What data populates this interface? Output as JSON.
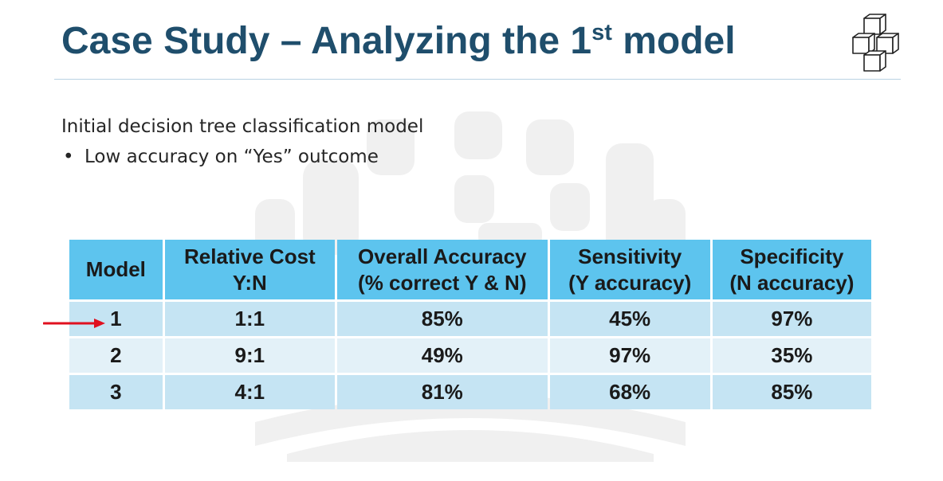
{
  "slide": {
    "title_main": "Case Study – Analyzing the 1",
    "title_sup": "st",
    "title_end": " model",
    "subtitle": "Initial decision tree classification model",
    "bullet_symbol": "•",
    "bullet": "Low accuracy on “Yes” outcome"
  },
  "table": {
    "headers": [
      [
        "Model",
        ""
      ],
      [
        "Relative Cost",
        "Y:N"
      ],
      [
        "Overall Accuracy",
        "(% correct Y & N)"
      ],
      [
        "Sensitivity",
        "(Y accuracy)"
      ],
      [
        "Specificity",
        "(N accuracy)"
      ]
    ],
    "rows": [
      [
        "1",
        "1:1",
        "85%",
        "45%",
        "97%"
      ],
      [
        "2",
        "9:1",
        "49%",
        "97%",
        "35%"
      ],
      [
        "3",
        "4:1",
        "81%",
        "68%",
        "85%"
      ]
    ],
    "highlighted_row": 1
  },
  "colors": {
    "title": "#1f4e6c",
    "header_fill": "#5dc4ee",
    "row_dark": "#c5e4f3",
    "row_light": "#e3f1f8",
    "arrow": "#e0101f"
  },
  "icons": {
    "logo": "stacked-cubes-icon",
    "pointer": "red-arrow-icon"
  }
}
